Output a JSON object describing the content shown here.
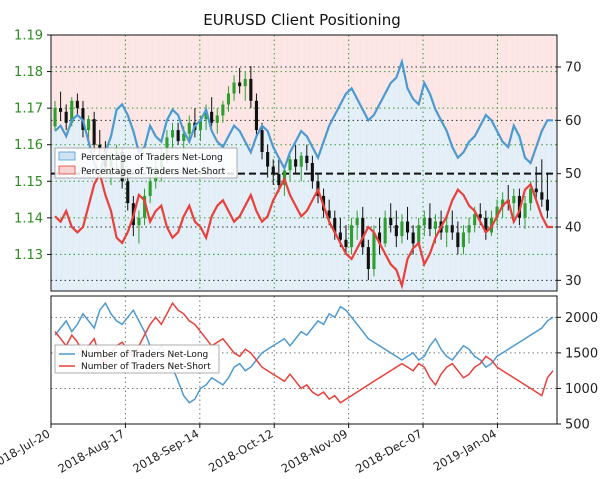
{
  "title": "EURUSD Client Positioning",
  "colors": {
    "long": "#4d9ad1",
    "short": "#e8403a",
    "up_candle": "#2e9e2e",
    "down_candle": "#111111",
    "long_fill": "#cfe2f3",
    "short_fill": "#f9d3d1",
    "grid": "#3a9a3a"
  },
  "chart_data": [
    {
      "type": "line",
      "panel": "top",
      "title": "EURUSD Client Positioning",
      "x_tick_labels": [
        "2018-Jul-20",
        "2018-Aug-17",
        "2018-Sep-14",
        "2018-Oct-12",
        "2018-Nov-09",
        "2018-Dec-07",
        "2019-Jan-04"
      ],
      "left_axis": {
        "ticks": [
          "1.13",
          "1.14",
          "1.15",
          "1.16",
          "1.17",
          "1.18",
          "1.19"
        ],
        "ylim": [
          1.12,
          1.19
        ]
      },
      "right_axis": {
        "ticks": [
          "30",
          "40",
          "50",
          "60",
          "70"
        ],
        "ylim": [
          28,
          76
        ]
      },
      "reference_line": 50,
      "price_candles": {
        "note": "EURUSD daily OHLC candles (green up, black down)",
        "values": [
          [
            1.165,
            1.172,
            1.164,
            1.17
          ],
          [
            1.17,
            1.1745,
            1.1665,
            1.169
          ],
          [
            1.169,
            1.171,
            1.164,
            1.166
          ],
          [
            1.166,
            1.173,
            1.165,
            1.172
          ],
          [
            1.172,
            1.174,
            1.168,
            1.17
          ],
          [
            1.17,
            1.172,
            1.162,
            1.164
          ],
          [
            1.164,
            1.168,
            1.16,
            1.167
          ],
          [
            1.167,
            1.169,
            1.158,
            1.16
          ],
          [
            1.16,
            1.164,
            1.156,
            1.159
          ],
          [
            1.159,
            1.161,
            1.152,
            1.154
          ],
          [
            1.154,
            1.158,
            1.149,
            1.156
          ],
          [
            1.156,
            1.16,
            1.153,
            1.158
          ],
          [
            1.158,
            1.159,
            1.148,
            1.15
          ],
          [
            1.15,
            1.153,
            1.142,
            1.144
          ],
          [
            1.144,
            1.146,
            1.135,
            1.138
          ],
          [
            1.138,
            1.142,
            1.133,
            1.14
          ],
          [
            1.14,
            1.148,
            1.138,
            1.146
          ],
          [
            1.146,
            1.152,
            1.144,
            1.15
          ],
          [
            1.15,
            1.156,
            1.148,
            1.154
          ],
          [
            1.154,
            1.159,
            1.15,
            1.157
          ],
          [
            1.157,
            1.164,
            1.155,
            1.162
          ],
          [
            1.162,
            1.166,
            1.159,
            1.164
          ],
          [
            1.164,
            1.166,
            1.16,
            1.161
          ],
          [
            1.161,
            1.165,
            1.158,
            1.163
          ],
          [
            1.163,
            1.168,
            1.161,
            1.166
          ],
          [
            1.166,
            1.17,
            1.162,
            1.164
          ],
          [
            1.164,
            1.168,
            1.161,
            1.167
          ],
          [
            1.167,
            1.171,
            1.164,
            1.169
          ],
          [
            1.169,
            1.173,
            1.165,
            1.166
          ],
          [
            1.166,
            1.17,
            1.163,
            1.168
          ],
          [
            1.168,
            1.172,
            1.166,
            1.171
          ],
          [
            1.171,
            1.176,
            1.169,
            1.174
          ],
          [
            1.174,
            1.179,
            1.172,
            1.177
          ],
          [
            1.177,
            1.181,
            1.174,
            1.176
          ],
          [
            1.176,
            1.18,
            1.172,
            1.178
          ],
          [
            1.178,
            1.1815,
            1.17,
            1.172
          ],
          [
            1.172,
            1.174,
            1.162,
            1.164
          ],
          [
            1.164,
            1.166,
            1.156,
            1.158
          ],
          [
            1.158,
            1.16,
            1.151,
            1.154
          ],
          [
            1.154,
            1.156,
            1.149,
            1.152
          ],
          [
            1.152,
            1.156,
            1.147,
            1.149
          ],
          [
            1.149,
            1.154,
            1.146,
            1.153
          ],
          [
            1.153,
            1.157,
            1.15,
            1.156
          ],
          [
            1.156,
            1.16,
            1.152,
            1.154
          ],
          [
            1.154,
            1.158,
            1.15,
            1.157
          ],
          [
            1.157,
            1.16,
            1.153,
            1.155
          ],
          [
            1.155,
            1.157,
            1.148,
            1.15
          ],
          [
            1.15,
            1.152,
            1.144,
            1.146
          ],
          [
            1.146,
            1.148,
            1.14,
            1.142
          ],
          [
            1.142,
            1.145,
            1.138,
            1.14
          ],
          [
            1.14,
            1.142,
            1.134,
            1.136
          ],
          [
            1.136,
            1.14,
            1.132,
            1.134
          ],
          [
            1.134,
            1.138,
            1.13,
            1.132
          ],
          [
            1.132,
            1.14,
            1.13,
            1.138
          ],
          [
            1.138,
            1.142,
            1.134,
            1.14
          ],
          [
            1.14,
            1.143,
            1.13,
            1.132
          ],
          [
            1.132,
            1.134,
            1.123,
            1.126
          ],
          [
            1.126,
            1.138,
            1.124,
            1.136
          ],
          [
            1.136,
            1.14,
            1.13,
            1.133
          ],
          [
            1.133,
            1.142,
            1.132,
            1.14
          ],
          [
            1.14,
            1.144,
            1.136,
            1.138
          ],
          [
            1.138,
            1.142,
            1.132,
            1.135
          ],
          [
            1.135,
            1.141,
            1.133,
            1.139
          ],
          [
            1.139,
            1.143,
            1.134,
            1.136
          ],
          [
            1.136,
            1.138,
            1.13,
            1.133
          ],
          [
            1.133,
            1.14,
            1.132,
            1.138
          ],
          [
            1.138,
            1.142,
            1.135,
            1.14
          ],
          [
            1.14,
            1.144,
            1.135,
            1.137
          ],
          [
            1.137,
            1.141,
            1.133,
            1.139
          ],
          [
            1.139,
            1.142,
            1.134,
            1.136
          ],
          [
            1.136,
            1.14,
            1.132,
            1.138
          ],
          [
            1.138,
            1.142,
            1.134,
            1.136
          ],
          [
            1.136,
            1.139,
            1.13,
            1.132
          ],
          [
            1.132,
            1.138,
            1.13,
            1.136
          ],
          [
            1.136,
            1.14,
            1.133,
            1.138
          ],
          [
            1.138,
            1.143,
            1.136,
            1.141
          ],
          [
            1.141,
            1.144,
            1.138,
            1.14
          ],
          [
            1.14,
            1.142,
            1.134,
            1.136
          ],
          [
            1.136,
            1.142,
            1.135,
            1.14
          ],
          [
            1.14,
            1.145,
            1.138,
            1.143
          ],
          [
            1.143,
            1.147,
            1.14,
            1.145
          ],
          [
            1.145,
            1.149,
            1.142,
            1.144
          ],
          [
            1.144,
            1.148,
            1.14,
            1.146
          ],
          [
            1.146,
            1.148,
            1.138,
            1.14
          ],
          [
            1.14,
            1.146,
            1.137,
            1.144
          ],
          [
            1.144,
            1.15,
            1.142,
            1.148
          ],
          [
            1.148,
            1.154,
            1.145,
            1.147
          ],
          [
            1.147,
            1.156,
            1.143,
            1.145
          ],
          [
            1.145,
            1.152,
            1.14,
            1.142
          ]
        ]
      },
      "series": [
        {
          "name": "Percentage of Traders Net-Long",
          "values": [
            58,
            59,
            57,
            60,
            61,
            60,
            56,
            52,
            50,
            54,
            57,
            62,
            63,
            61,
            58,
            54,
            55,
            59,
            57,
            56,
            60,
            62,
            61,
            58,
            56,
            59,
            60,
            62,
            58,
            56,
            55,
            57,
            59,
            58,
            56,
            54,
            57,
            59,
            58,
            55,
            53,
            51,
            54,
            56,
            58,
            57,
            55,
            53,
            56,
            59,
            61,
            63,
            65,
            66,
            64,
            62,
            60,
            61,
            63,
            65,
            67,
            68,
            71,
            66,
            64,
            63,
            67,
            65,
            62,
            60,
            58,
            55,
            53,
            54,
            56,
            57,
            59,
            61,
            60,
            58,
            56,
            55,
            59,
            57,
            53,
            52,
            55,
            58,
            60,
            60
          ]
        },
        {
          "name": "Percentage of Traders Net-Short",
          "values": [
            42,
            41,
            43,
            40,
            39,
            40,
            44,
            48,
            50,
            46,
            43,
            38,
            37,
            39,
            42,
            46,
            45,
            41,
            43,
            44,
            40,
            38,
            39,
            42,
            44,
            41,
            40,
            38,
            42,
            44,
            45,
            43,
            41,
            42,
            44,
            46,
            43,
            41,
            42,
            45,
            47,
            49,
            46,
            44,
            42,
            43,
            45,
            47,
            44,
            41,
            39,
            37,
            35,
            34,
            36,
            38,
            40,
            39,
            37,
            35,
            33,
            32,
            29,
            34,
            36,
            37,
            33,
            35,
            38,
            40,
            42,
            45,
            47,
            46,
            44,
            43,
            41,
            39,
            40,
            42,
            44,
            45,
            41,
            43,
            47,
            48,
            45,
            42,
            40,
            40
          ]
        }
      ]
    },
    {
      "type": "line",
      "panel": "bottom",
      "right_axis": {
        "ticks": [
          "500",
          "1000",
          "1500",
          "2000"
        ],
        "ylim": [
          500,
          2300
        ]
      },
      "series": [
        {
          "name": "Number of Traders Net-Long",
          "values": [
            1750,
            1850,
            1950,
            1800,
            1900,
            2050,
            1950,
            1850,
            2100,
            2200,
            2050,
            1950,
            1900,
            2000,
            2100,
            1950,
            1800,
            1600,
            1500,
            1600,
            1450,
            1300,
            1100,
            900,
            800,
            850,
            1000,
            1050,
            1150,
            1100,
            1050,
            1150,
            1300,
            1350,
            1250,
            1300,
            1400,
            1500,
            1550,
            1600,
            1650,
            1700,
            1600,
            1700,
            1800,
            1750,
            1850,
            1950,
            1900,
            2050,
            2000,
            2150,
            2100,
            2000,
            1900,
            1800,
            1700,
            1650,
            1600,
            1550,
            1500,
            1450,
            1400,
            1450,
            1500,
            1400,
            1450,
            1600,
            1700,
            1550,
            1450,
            1400,
            1500,
            1600,
            1550,
            1450,
            1400,
            1300,
            1350,
            1450,
            1500,
            1550,
            1600,
            1650,
            1700,
            1750,
            1800,
            1850,
            1950,
            2000
          ]
        },
        {
          "name": "Number of Traders Net-Short",
          "values": [
            1800,
            1700,
            1600,
            1750,
            1650,
            1500,
            1600,
            1700,
            1450,
            1350,
            1500,
            1600,
            1650,
            1550,
            1450,
            1600,
            1750,
            1900,
            2000,
            1900,
            2050,
            2200,
            2100,
            2050,
            1950,
            1900,
            1800,
            1700,
            1600,
            1650,
            1700,
            1600,
            1500,
            1450,
            1550,
            1500,
            1400,
            1300,
            1250,
            1200,
            1150,
            1100,
            1200,
            1100,
            1000,
            1050,
            950,
            900,
            950,
            850,
            900,
            800,
            850,
            900,
            950,
            1000,
            1050,
            1100,
            1150,
            1200,
            1250,
            1300,
            1350,
            1300,
            1250,
            1350,
            1300,
            1150,
            1050,
            1200,
            1300,
            1350,
            1250,
            1150,
            1200,
            1300,
            1350,
            1450,
            1400,
            1300,
            1250,
            1200,
            1150,
            1100,
            1050,
            1000,
            950,
            900,
            1150,
            1250
          ]
        }
      ]
    }
  ]
}
